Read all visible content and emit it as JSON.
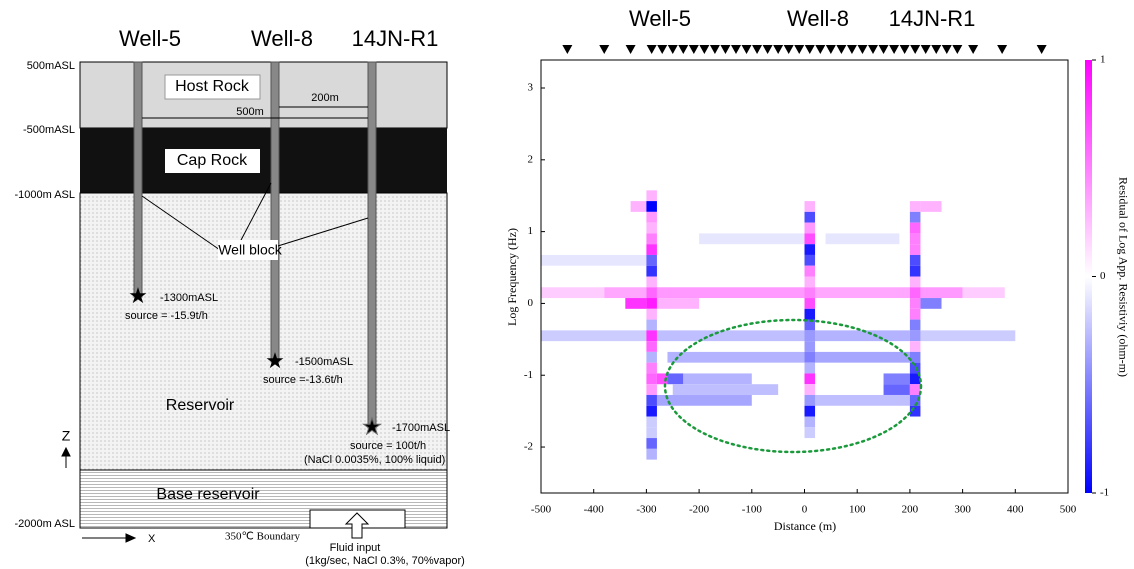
{
  "diagram": {
    "wells": [
      "Well-5",
      "Well-8",
      "14JN-R1"
    ],
    "elevations": [
      "500mASL",
      "-500mASL",
      "-1000m ASL",
      "-2000m ASL"
    ],
    "layers": [
      "Host Rock",
      "Cap Rock",
      "Reservoir",
      "Base reservoir"
    ],
    "distances": [
      "500m",
      "200m"
    ],
    "well_block": "Well block",
    "bottoms": [
      "-1300mASL",
      "-1500mASL",
      "-1700mASL"
    ],
    "sources": [
      "source = -15.9t/h",
      "source =-13.6t/h",
      "source = 100t/h",
      "(NaCl 0.0035%, 100% liquid)"
    ],
    "axes": [
      "Z",
      "X"
    ],
    "boundary": "350℃ Boundary",
    "fluid_input": [
      "Fluid input",
      "(1kg/sec, NaCl 0.3%, 70%vapor)"
    ]
  },
  "chart_data": {
    "type": "heatmap",
    "annotations": [
      "Well-5",
      "Well-8",
      "14JN-R1"
    ],
    "xlabel": "Distance (m)",
    "ylabel": "Log Frequency (Hz)",
    "colorbar_label": "Residual of Log App. Resistiviy (ohm-m)",
    "xlim": [
      -500,
      500
    ],
    "xticks": [
      -500,
      -400,
      -300,
      -200,
      -100,
      0,
      100,
      200,
      300,
      400,
      500
    ],
    "ylim": [
      -2.64,
      3.39
    ],
    "yticks": [
      -2,
      -1,
      0,
      1,
      2,
      3
    ],
    "zlim": [
      -1,
      1
    ],
    "zticks": [
      -1,
      0,
      1
    ],
    "stations": [
      -450,
      -380,
      -330,
      -290,
      -270,
      -250,
      -230,
      -210,
      -190,
      -170,
      -150,
      -130,
      -110,
      -90,
      -70,
      -50,
      -30,
      -10,
      10,
      30,
      50,
      70,
      90,
      110,
      130,
      150,
      170,
      190,
      210,
      230,
      250,
      270,
      290,
      320,
      375,
      450
    ],
    "cells": [
      [
        -500,
        -380,
        0.15,
        0.2
      ],
      [
        -380,
        -300,
        0.15,
        0.35
      ],
      [
        -280,
        0,
        0.15,
        0.4
      ],
      [
        20,
        200,
        0.15,
        0.35
      ],
      [
        220,
        300,
        0.15,
        0.4
      ],
      [
        300,
        380,
        0.15,
        0.2
      ],
      [
        -340,
        -300,
        0,
        0.8
      ],
      [
        -280,
        -200,
        0,
        0.3
      ],
      [
        220,
        260,
        0,
        -0.5
      ],
      [
        -500,
        -300,
        -0.45,
        -0.2
      ],
      [
        -280,
        0,
        -0.45,
        -0.25
      ],
      [
        20,
        200,
        -0.45,
        -0.3
      ],
      [
        220,
        400,
        -0.45,
        -0.2
      ],
      [
        -260,
        0,
        -0.75,
        -0.3
      ],
      [
        20,
        200,
        -0.75,
        -0.35
      ],
      [
        -280,
        -260,
        -1.05,
        0.7
      ],
      [
        -260,
        -230,
        -1.05,
        -0.6
      ],
      [
        -230,
        -100,
        -1.05,
        -0.3
      ],
      [
        150,
        200,
        -1.05,
        -0.5
      ],
      [
        -250,
        -50,
        -1.2,
        -0.25
      ],
      [
        150,
        200,
        -1.2,
        -0.6
      ],
      [
        -280,
        -100,
        -1.35,
        -0.35
      ],
      [
        20,
        200,
        -1.35,
        -0.25
      ],
      [
        -500,
        -300,
        0.6,
        -0.1
      ],
      [
        -330,
        -300,
        1.35,
        0.3
      ],
      [
        220,
        260,
        1.35,
        0.3
      ],
      [
        -200,
        0,
        0.9,
        -0.1
      ],
      [
        40,
        180,
        0.9,
        -0.1
      ],
      [
        -300,
        -280,
        1.5,
        0.3
      ],
      [
        -300,
        -280,
        1.35,
        -1
      ],
      [
        -300,
        -280,
        1.2,
        0.4
      ],
      [
        -300,
        -280,
        1.05,
        0.3
      ],
      [
        -300,
        -280,
        0.9,
        0.5
      ],
      [
        -300,
        -280,
        0.75,
        0.8
      ],
      [
        -300,
        -280,
        0.6,
        -0.6
      ],
      [
        -300,
        -280,
        0.45,
        -0.8
      ],
      [
        -300,
        -280,
        0.3,
        0.3
      ],
      [
        -300,
        -280,
        0.15,
        0.6
      ],
      [
        -300,
        -280,
        0,
        0.9
      ],
      [
        -300,
        -280,
        -0.15,
        0.3
      ],
      [
        -300,
        -280,
        -0.3,
        -0.3
      ],
      [
        -300,
        -280,
        -0.45,
        0.8
      ],
      [
        -300,
        -280,
        -0.6,
        0.6
      ],
      [
        -300,
        -280,
        -0.75,
        -0.3
      ],
      [
        -300,
        -280,
        -0.9,
        0.5
      ],
      [
        -300,
        -280,
        -1.05,
        0.6
      ],
      [
        -300,
        -280,
        -1.2,
        0.4
      ],
      [
        -300,
        -280,
        -1.35,
        -0.7
      ],
      [
        -300,
        -280,
        -1.5,
        -0.9
      ],
      [
        -300,
        -280,
        -1.65,
        -0.2
      ],
      [
        -300,
        -280,
        -1.8,
        -0.2
      ],
      [
        -300,
        -280,
        -1.95,
        -0.6
      ],
      [
        -300,
        -280,
        -2.1,
        -0.3
      ],
      [
        0,
        20,
        1.35,
        0.3
      ],
      [
        0,
        20,
        1.2,
        -0.7
      ],
      [
        0,
        20,
        1.05,
        0.4
      ],
      [
        0,
        20,
        0.9,
        0.7
      ],
      [
        0,
        20,
        0.75,
        -0.9
      ],
      [
        0,
        20,
        0.6,
        -0.7
      ],
      [
        0,
        20,
        0.45,
        0.5
      ],
      [
        0,
        20,
        0.3,
        0.3
      ],
      [
        0,
        20,
        0.15,
        0.5
      ],
      [
        0,
        20,
        0,
        0.7
      ],
      [
        0,
        20,
        -0.15,
        -0.9
      ],
      [
        0,
        20,
        -0.3,
        -0.6
      ],
      [
        0,
        20,
        -0.45,
        -0.4
      ],
      [
        0,
        20,
        -0.6,
        -0.4
      ],
      [
        0,
        20,
        -0.75,
        -0.5
      ],
      [
        0,
        20,
        -0.9,
        -0.3
      ],
      [
        0,
        20,
        -1.05,
        0.8
      ],
      [
        0,
        20,
        -1.2,
        0.3
      ],
      [
        0,
        20,
        -1.35,
        -0.4
      ],
      [
        0,
        20,
        -1.5,
        -0.9
      ],
      [
        0,
        20,
        -1.65,
        -0.3
      ],
      [
        0,
        20,
        -1.8,
        -0.2
      ],
      [
        200,
        220,
        1.35,
        0.3
      ],
      [
        200,
        220,
        1.2,
        -0.5
      ],
      [
        200,
        220,
        1.05,
        0.6
      ],
      [
        200,
        220,
        0.9,
        0.5
      ],
      [
        200,
        220,
        0.75,
        0.5
      ],
      [
        200,
        220,
        0.6,
        -0.7
      ],
      [
        200,
        220,
        0.45,
        -0.8
      ],
      [
        200,
        220,
        0.3,
        0.3
      ],
      [
        200,
        220,
        0.15,
        0.6
      ],
      [
        200,
        220,
        0,
        0.5
      ],
      [
        200,
        220,
        -0.15,
        0.5
      ],
      [
        200,
        220,
        -0.3,
        -0.5
      ],
      [
        200,
        220,
        -0.45,
        -0.4
      ],
      [
        200,
        220,
        -0.6,
        0.3
      ],
      [
        200,
        220,
        -0.75,
        -0.5
      ],
      [
        200,
        220,
        -0.9,
        -0.7
      ],
      [
        200,
        220,
        -1.05,
        -0.9
      ],
      [
        200,
        220,
        -1.2,
        0.5
      ],
      [
        200,
        220,
        -1.35,
        -0.6
      ],
      [
        200,
        220,
        -1.5,
        -0.8
      ]
    ]
  }
}
